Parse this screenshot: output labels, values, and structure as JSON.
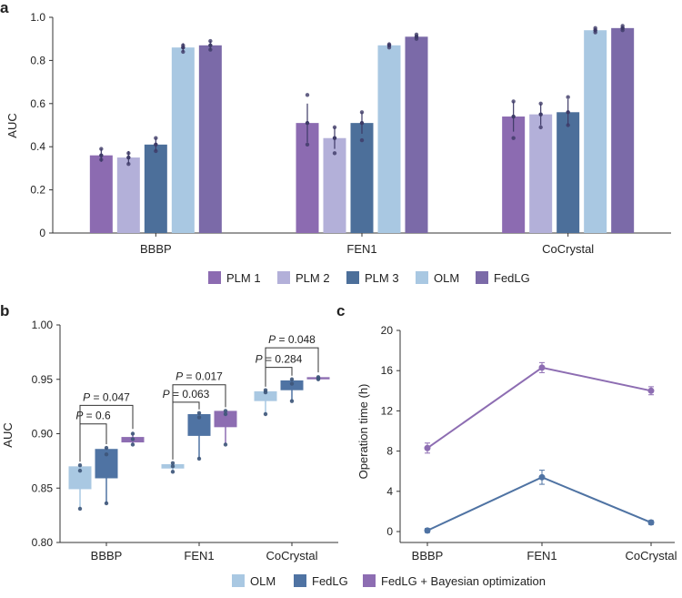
{
  "panels": {
    "a": "a",
    "b": "b",
    "c": "c"
  },
  "colors": {
    "PLM 1": "#8c6bb1",
    "PLM 2": "#b3b0d9",
    "PLM 3": "#4c6f9a",
    "OLM": "#a9c8e2",
    "FedLG": "#7b6aa8",
    "FedLG_b": "#4f73a3",
    "Bayes": "#8d6db2",
    "err": "#3d3a66"
  },
  "chart_data": [
    {
      "id": "a",
      "type": "bar",
      "title": "",
      "xlabel": "",
      "ylabel": "AUC",
      "ylim": [
        0,
        1.0
      ],
      "yticks": [
        "0",
        "0.2",
        "0.4",
        "0.6",
        "0.8",
        "1.0"
      ],
      "categories": [
        "BBBP",
        "FEN1",
        "CoCrystal"
      ],
      "series": [
        {
          "name": "PLM 1",
          "values": [
            0.36,
            0.51,
            0.54
          ],
          "err": [
            0.03,
            0.09,
            0.07
          ],
          "points": [
            [
              0.34,
              0.39
            ],
            [
              0.41,
              0.64
            ],
            [
              0.44,
              0.61
            ]
          ]
        },
        {
          "name": "PLM 2",
          "values": [
            0.35,
            0.44,
            0.55
          ],
          "err": [
            0.03,
            0.05,
            0.05
          ],
          "points": [
            [
              0.32,
              0.37
            ],
            [
              0.37,
              0.49
            ],
            [
              0.49,
              0.6
            ]
          ]
        },
        {
          "name": "PLM 3",
          "values": [
            0.41,
            0.51,
            0.56
          ],
          "err": [
            0.03,
            0.05,
            0.06
          ],
          "points": [
            [
              0.38,
              0.44
            ],
            [
              0.43,
              0.56
            ],
            [
              0.5,
              0.63
            ]
          ]
        },
        {
          "name": "OLM",
          "values": [
            0.86,
            0.87,
            0.94
          ],
          "err": [
            0.02,
            0.01,
            0.01
          ],
          "points": [
            [
              0.84,
              0.87
            ],
            [
              0.86,
              0.875
            ],
            [
              0.93,
              0.95
            ]
          ]
        },
        {
          "name": "FedLG",
          "values": [
            0.87,
            0.91,
            0.95
          ],
          "err": [
            0.02,
            0.01,
            0.01
          ],
          "points": [
            [
              0.85,
              0.89
            ],
            [
              0.9,
              0.92
            ],
            [
              0.94,
              0.96
            ]
          ]
        }
      ],
      "legend": [
        "PLM 1",
        "PLM 2",
        "PLM 3",
        "OLM",
        "FedLG"
      ],
      "legend_position": "bottom"
    },
    {
      "id": "b",
      "type": "box",
      "title": "",
      "xlabel": "",
      "ylabel": "AUC",
      "ylim": [
        0.8,
        1.0
      ],
      "yticks": [
        "0.80",
        "0.85",
        "0.90",
        "0.95",
        "1.00"
      ],
      "categories": [
        "BBBP",
        "FEN1",
        "CoCrystal"
      ],
      "series": [
        {
          "name": "OLM",
          "boxes": [
            {
              "q1": 0.849,
              "q3": 0.87,
              "min": 0.831,
              "max": 0.871,
              "median": 0.849,
              "points": [
                0.831,
                0.866,
                0.871
              ]
            },
            {
              "q1": 0.868,
              "q3": 0.872,
              "min": 0.864,
              "max": 0.873,
              "median": 0.87,
              "points": [
                0.865,
                0.87,
                0.873
              ]
            },
            {
              "q1": 0.93,
              "q3": 0.939,
              "min": 0.918,
              "max": 0.94,
              "median": 0.938,
              "points": [
                0.918,
                0.938,
                0.94
              ]
            }
          ]
        },
        {
          "name": "FedLG",
          "boxes": [
            {
              "q1": 0.859,
              "q3": 0.886,
              "min": 0.836,
              "max": 0.887,
              "median": 0.881,
              "points": [
                0.836,
                0.881,
                0.887
              ]
            },
            {
              "q1": 0.898,
              "q3": 0.918,
              "min": 0.877,
              "max": 0.919,
              "median": 0.915,
              "points": [
                0.877,
                0.915,
                0.919
              ]
            },
            {
              "q1": 0.94,
              "q3": 0.949,
              "min": 0.93,
              "max": 0.95,
              "median": 0.946,
              "points": [
                0.93,
                0.946,
                0.95
              ]
            }
          ]
        },
        {
          "name": "FedLG + Bayesian optimization",
          "boxes": [
            {
              "q1": 0.892,
              "q3": 0.897,
              "min": 0.89,
              "max": 0.901,
              "median": 0.895,
              "points": [
                0.89,
                0.895,
                0.9
              ]
            },
            {
              "q1": 0.906,
              "q3": 0.921,
              "min": 0.89,
              "max": 0.921,
              "median": 0.918,
              "points": [
                0.89,
                0.918,
                0.921
              ]
            },
            {
              "q1": 0.95,
              "q3": 0.952,
              "min": 0.949,
              "max": 0.953,
              "median": 0.951,
              "points": [
                0.95,
                0.951,
                0.952
              ]
            }
          ]
        }
      ],
      "annotations": [
        {
          "text": "P = 0.6",
          "pval": "0.6",
          "category": "BBBP",
          "from": 0,
          "to": 1,
          "y": 0.909
        },
        {
          "text": "P = 0.047",
          "pval": "0.047",
          "category": "BBBP",
          "from": 0,
          "to": 2,
          "y": 0.926
        },
        {
          "text": "P = 0.063",
          "pval": "0.063",
          "category": "FEN1",
          "from": 0,
          "to": 1,
          "y": 0.929
        },
        {
          "text": "P = 0.017",
          "pval": "0.017",
          "category": "FEN1",
          "from": 0,
          "to": 2,
          "y": 0.945
        },
        {
          "text": "P = 0.284",
          "pval": "0.284",
          "category": "CoCrystal",
          "from": 0,
          "to": 1,
          "y": 0.961
        },
        {
          "text": "P = 0.048",
          "pval": "0.048",
          "category": "CoCrystal",
          "from": 0,
          "to": 2,
          "y": 0.979
        }
      ],
      "legend": [
        "OLM",
        "FedLG",
        "FedLG + Bayesian optimization"
      ],
      "legend_position": "bottom"
    },
    {
      "id": "c",
      "type": "line",
      "title": "",
      "xlabel": "",
      "ylabel": "Operation time (h)",
      "ylim": [
        0,
        20
      ],
      "yticks": [
        "0",
        "4",
        "8",
        "12",
        "16",
        "20"
      ],
      "categories": [
        "BBBP",
        "FEN1",
        "CoCrystal"
      ],
      "series": [
        {
          "name": "upper",
          "values": [
            8.3,
            16.3,
            14.0
          ],
          "err": [
            0.5,
            0.5,
            0.4
          ],
          "color": "#8d6db2"
        },
        {
          "name": "lower",
          "values": [
            0.1,
            5.4,
            0.9
          ],
          "err": [
            0.2,
            0.7,
            0.2
          ],
          "color": "#4f73a3"
        }
      ]
    }
  ]
}
